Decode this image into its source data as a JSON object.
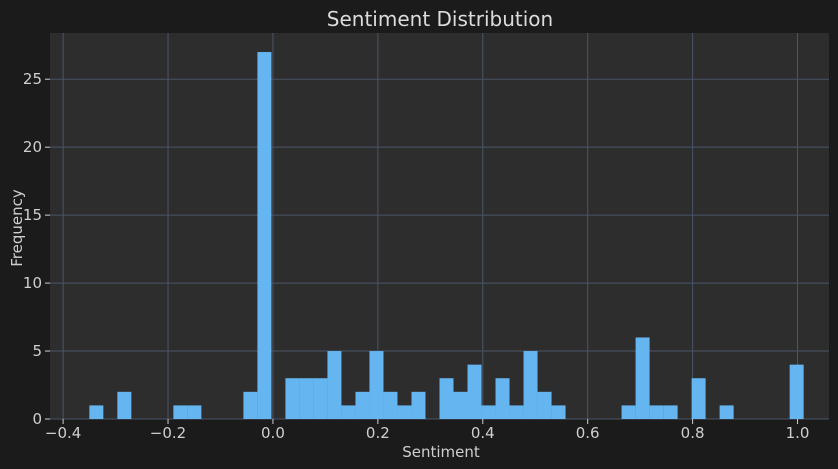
{
  "chart_data": {
    "type": "bar",
    "title": "Sentiment Distribution",
    "xlabel": "Sentiment",
    "ylabel": "Frequency",
    "xlim": [
      -0.425,
      1.06
    ],
    "ylim": [
      0,
      28.4
    ],
    "xticks": [
      -0.4,
      -0.2,
      0.0,
      0.2,
      0.4,
      0.6,
      0.8,
      1.0
    ],
    "xtick_labels": [
      "−0.4",
      "−0.2",
      "0.0",
      "0.2",
      "0.4",
      "0.6",
      "0.8",
      "1.0"
    ],
    "yticks": [
      0,
      5,
      10,
      15,
      20,
      25
    ],
    "ytick_labels": [
      "0",
      "5",
      "10",
      "15",
      "20",
      "25"
    ],
    "grid": true,
    "bin_start": -0.35,
    "bin_width": 0.0267,
    "counts": [
      1,
      0,
      2,
      0,
      0,
      0,
      1,
      1,
      0,
      0,
      0,
      2,
      27,
      0,
      3,
      3,
      3,
      5,
      1,
      2,
      5,
      2,
      1,
      2,
      0,
      3,
      2,
      4,
      1,
      3,
      1,
      5,
      2,
      1,
      0,
      0,
      0,
      0,
      1,
      6,
      1,
      1,
      0,
      3,
      0,
      1,
      0,
      0,
      0,
      0,
      4
    ],
    "colors": {
      "figure_background": "#1b1b1b",
      "axes_background": "#2d2d2d",
      "bar": "#64b5f0",
      "grid": "#4a5568",
      "text": "#cfcfcf",
      "title": "#dcdcdc"
    }
  }
}
